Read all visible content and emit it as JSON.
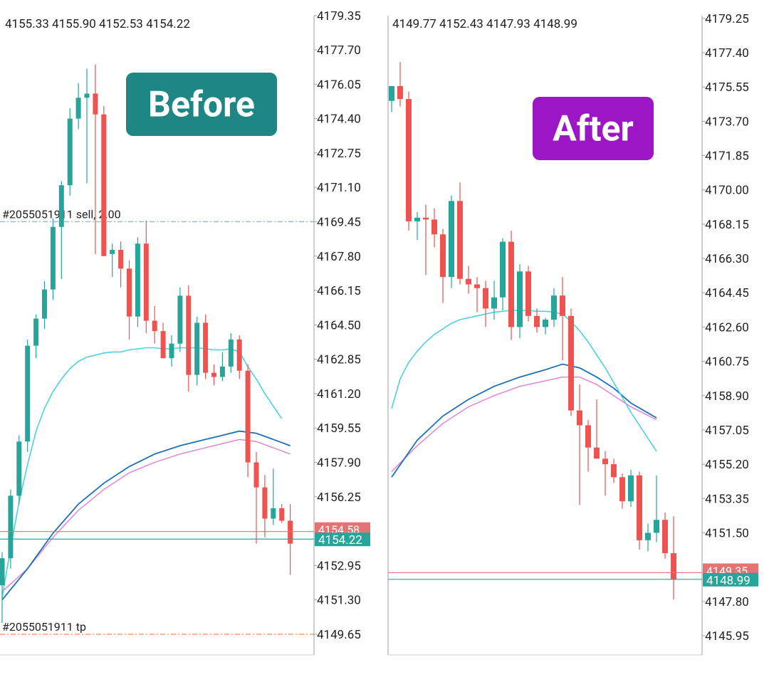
{
  "colors": {
    "bull": "#26a69a",
    "bear": "#ef5350",
    "bid": "#e57373",
    "ask": "#26a69a",
    "ma_fast": "#4dd0e1",
    "ma_mid": "#1e6fb5",
    "ma_slow": "#e08fd4",
    "sell_line": "#7ec3d9",
    "tp_line": "#f0a070",
    "before_badge": "#1e8784",
    "after_badge": "#9c16c6"
  },
  "badges": {
    "before": "Before",
    "after": "After"
  },
  "chart_data": [
    {
      "id": "before",
      "type": "candlestick",
      "ohlc_label": "4155.33 4155.90 4152.53 4154.22",
      "yaxis_ticks": [
        "4179.35",
        "4177.70",
        "4176.05",
        "4174.40",
        "4172.75",
        "4171.10",
        "4169.45",
        "4167.80",
        "4166.15",
        "4164.50",
        "4162.85",
        "4161.20",
        "4159.55",
        "4157.90",
        "4156.25",
        "4152.95",
        "4151.30",
        "4149.65"
      ],
      "yaxis_top_clipped": "4179.35",
      "bid": {
        "value": 4154.58,
        "label": "4154.58"
      },
      "ask": {
        "value": 4154.22,
        "label": "4154.22"
      },
      "order_lines": [
        {
          "label": "#2055051911 sell, 2.00",
          "value": 4169.45,
          "style": "sell"
        },
        {
          "label": "#2055051911 tp",
          "value": 4149.65,
          "style": "tp"
        }
      ],
      "candles": [
        [
          4152.0,
          4153.6,
          4150.2,
          4153.3
        ],
        [
          4153.3,
          4156.6,
          4152.8,
          4156.3
        ],
        [
          4156.3,
          4159.2,
          4155.9,
          4158.9
        ],
        [
          4158.9,
          4163.8,
          4158.4,
          4163.5
        ],
        [
          4163.5,
          4165.0,
          4162.9,
          4164.8
        ],
        [
          4164.8,
          4166.6,
          4164.3,
          4166.2
        ],
        [
          4166.2,
          4169.6,
          4165.7,
          4169.2
        ],
        [
          4169.2,
          4171.4,
          4166.7,
          4171.2
        ],
        [
          4171.2,
          4174.9,
          4170.7,
          4174.4
        ],
        [
          4174.4,
          4176.1,
          4173.9,
          4175.4
        ],
        [
          4175.4,
          4176.8,
          4171.3,
          4175.6
        ],
        [
          4175.6,
          4177.0,
          4167.9,
          4174.6
        ],
        [
          4174.6,
          4175.0,
          4167.8,
          4167.8
        ],
        [
          4167.9,
          4168.4,
          4166.8,
          4168.1
        ],
        [
          4168.1,
          4168.5,
          4166.3,
          4167.2
        ],
        [
          4167.2,
          4167.6,
          4163.8,
          4164.9
        ],
        [
          4164.9,
          4168.7,
          4164.4,
          4168.4
        ],
        [
          4168.4,
          4169.5,
          4164.1,
          4164.7
        ],
        [
          4164.7,
          4165.4,
          4163.6,
          4164.2
        ],
        [
          4164.2,
          4164.6,
          4162.9,
          4162.9
        ],
        [
          4162.9,
          4164.0,
          4162.5,
          4163.6
        ],
        [
          4163.6,
          4166.3,
          4163.2,
          4165.9
        ],
        [
          4165.9,
          4166.4,
          4161.3,
          4162.1
        ],
        [
          4162.1,
          4164.9,
          4161.6,
          4164.6
        ],
        [
          4164.6,
          4165.0,
          4161.9,
          4162.2
        ],
        [
          4162.2,
          4162.6,
          4161.6,
          4162.0
        ],
        [
          4162.0,
          4163.2,
          4161.8,
          4162.5
        ],
        [
          4162.5,
          4164.1,
          4162.2,
          4163.8
        ],
        [
          4163.8,
          4164.0,
          4161.9,
          4162.3
        ],
        [
          4162.3,
          4162.6,
          4157.2,
          4157.9
        ],
        [
          4157.9,
          4158.4,
          4154.0,
          4156.7
        ],
        [
          4156.7,
          4157.3,
          4154.3,
          4155.2
        ],
        [
          4155.2,
          4157.6,
          4154.9,
          4155.7
        ],
        [
          4155.7,
          4155.9,
          4155.0,
          4155.1
        ],
        [
          4155.1,
          4155.9,
          4152.5,
          4154.0
        ]
      ],
      "ma_fast": [
        [
          0,
          4151.4
        ],
        [
          1,
          4153.8
        ],
        [
          2,
          4156.0
        ],
        [
          3,
          4157.8
        ],
        [
          4,
          4159.4
        ],
        [
          5,
          4160.5
        ],
        [
          6,
          4161.3
        ],
        [
          7,
          4161.9
        ],
        [
          8,
          4162.4
        ],
        [
          9,
          4162.75
        ],
        [
          10,
          4162.95
        ],
        [
          11,
          4163.05
        ],
        [
          12,
          4163.15
        ],
        [
          13,
          4163.2
        ],
        [
          14,
          4163.2
        ],
        [
          15,
          4163.3
        ],
        [
          16,
          4163.35
        ],
        [
          17,
          4163.4
        ],
        [
          18,
          4163.4
        ],
        [
          19,
          4163.35
        ],
        [
          20,
          4163.35
        ],
        [
          21,
          4163.4
        ],
        [
          22,
          4163.4
        ],
        [
          23,
          4163.4
        ],
        [
          24,
          4163.35
        ],
        [
          25,
          4163.3
        ],
        [
          26,
          4163.3
        ],
        [
          27,
          4163.35
        ],
        [
          28,
          4163.2
        ],
        [
          29,
          4162.5
        ],
        [
          30,
          4161.9
        ],
        [
          31,
          4161.2
        ],
        [
          32,
          4160.6
        ],
        [
          33,
          4160.0
        ]
      ],
      "ma_mid": [
        [
          0,
          4151.3
        ],
        [
          3,
          4152.8
        ],
        [
          6,
          4154.5
        ],
        [
          9,
          4155.9
        ],
        [
          12,
          4156.9
        ],
        [
          15,
          4157.7
        ],
        [
          18,
          4158.3
        ],
        [
          21,
          4158.7
        ],
        [
          24,
          4159.0
        ],
        [
          26,
          4159.2
        ],
        [
          28,
          4159.4
        ],
        [
          30,
          4159.3
        ],
        [
          32,
          4159.0
        ],
        [
          34,
          4158.7
        ]
      ],
      "ma_slow": [
        [
          0,
          4151.7
        ],
        [
          3,
          4152.8
        ],
        [
          6,
          4154.3
        ],
        [
          9,
          4155.6
        ],
        [
          12,
          4156.6
        ],
        [
          15,
          4157.4
        ],
        [
          18,
          4157.9
        ],
        [
          21,
          4158.3
        ],
        [
          24,
          4158.6
        ],
        [
          26,
          4158.8
        ],
        [
          28,
          4159.0
        ],
        [
          30,
          4158.9
        ],
        [
          32,
          4158.6
        ],
        [
          34,
          4158.3
        ]
      ]
    },
    {
      "id": "after",
      "type": "candlestick",
      "ohlc_label": "4149.77 4152.43 4147.93 4148.99",
      "yaxis_ticks": [
        "4179.25",
        "4177.40",
        "4175.55",
        "4173.70",
        "4171.85",
        "4170.00",
        "4168.15",
        "4166.30",
        "4164.45",
        "4162.60",
        "4160.75",
        "4158.90",
        "4157.05",
        "4155.20",
        "4153.35",
        "4151.50",
        "4147.80",
        "4145.95"
      ],
      "bid": {
        "value": 4149.35,
        "label": "4149.35"
      },
      "ask": {
        "value": 4148.99,
        "label": "4148.99"
      },
      "order_lines": [],
      "candles": [
        [
          4174.8,
          4175.6,
          4174.2,
          4175.6
        ],
        [
          4175.6,
          4176.9,
          4174.5,
          4174.9
        ],
        [
          4174.9,
          4175.3,
          4167.8,
          4168.3
        ],
        [
          4168.3,
          4168.8,
          4167.3,
          4168.5
        ],
        [
          4168.5,
          4169.2,
          4165.4,
          4168.4
        ],
        [
          4168.4,
          4169.0,
          4166.9,
          4167.6
        ],
        [
          4167.6,
          4167.9,
          4163.9,
          4165.3
        ],
        [
          4165.3,
          4169.7,
          4164.7,
          4169.4
        ],
        [
          4169.4,
          4170.4,
          4164.9,
          4165.2
        ],
        [
          4165.2,
          4165.9,
          4164.4,
          4164.9
        ],
        [
          4164.9,
          4165.3,
          4163.4,
          4164.7
        ],
        [
          4164.7,
          4165.1,
          4162.6,
          4163.6
        ],
        [
          4163.6,
          4165.1,
          4163.0,
          4164.2
        ],
        [
          4164.2,
          4167.4,
          4163.5,
          4167.2
        ],
        [
          4167.2,
          4167.8,
          4161.9,
          4162.6
        ],
        [
          4162.6,
          4166.0,
          4162.0,
          4165.6
        ],
        [
          4165.6,
          4165.9,
          4162.9,
          4163.2
        ],
        [
          4163.2,
          4163.6,
          4162.3,
          4162.6
        ],
        [
          4162.6,
          4163.1,
          4162.2,
          4163.0
        ],
        [
          4163.0,
          4164.7,
          4162.6,
          4164.3
        ],
        [
          4164.3,
          4165.3,
          4160.8,
          4163.2
        ],
        [
          4163.2,
          4163.6,
          4157.8,
          4158.1
        ],
        [
          4158.1,
          4159.5,
          4153.0,
          4157.3
        ],
        [
          4157.3,
          4157.6,
          4154.8,
          4156.1
        ],
        [
          4156.1,
          4158.7,
          4155.5,
          4155.5
        ],
        [
          4155.5,
          4155.9,
          4153.5,
          4155.2
        ],
        [
          4155.2,
          4155.5,
          4154.2,
          4154.5
        ],
        [
          4154.5,
          4154.7,
          4152.8,
          4153.2
        ],
        [
          4153.2,
          4154.9,
          4152.9,
          4154.6
        ],
        [
          4154.6,
          4154.8,
          4150.6,
          4151.1
        ],
        [
          4151.1,
          4152.0,
          4150.5,
          4151.5
        ],
        [
          4151.5,
          4154.6,
          4151.0,
          4152.2
        ],
        [
          4152.2,
          4152.6,
          4150.1,
          4150.4
        ],
        [
          4150.4,
          4152.4,
          4147.9,
          4149.0
        ]
      ],
      "ma_fast": [
        [
          0,
          4158.2
        ],
        [
          1,
          4159.8
        ],
        [
          2,
          4160.7
        ],
        [
          3,
          4161.3
        ],
        [
          4,
          4161.8
        ],
        [
          5,
          4162.2
        ],
        [
          6,
          4162.5
        ],
        [
          7,
          4162.8
        ],
        [
          8,
          4163.0
        ],
        [
          9,
          4163.1
        ],
        [
          10,
          4163.2
        ],
        [
          11,
          4163.3
        ],
        [
          12,
          4163.4
        ],
        [
          13,
          4163.45
        ],
        [
          14,
          4163.5
        ],
        [
          15,
          4163.5
        ],
        [
          16,
          4163.5
        ],
        [
          17,
          4163.45
        ],
        [
          18,
          4163.45
        ],
        [
          19,
          4163.4
        ],
        [
          20,
          4163.3
        ],
        [
          21,
          4162.9
        ],
        [
          22,
          4162.4
        ],
        [
          23,
          4161.8
        ],
        [
          24,
          4161.1
        ],
        [
          25,
          4160.4
        ],
        [
          26,
          4159.6
        ],
        [
          27,
          4158.8
        ],
        [
          28,
          4158.0
        ],
        [
          29,
          4157.3
        ],
        [
          30,
          4156.6
        ],
        [
          31,
          4155.9
        ]
      ],
      "ma_mid": [
        [
          0,
          4154.5
        ],
        [
          3,
          4156.5
        ],
        [
          6,
          4157.8
        ],
        [
          9,
          4158.7
        ],
        [
          12,
          4159.4
        ],
        [
          15,
          4159.9
        ],
        [
          18,
          4160.3
        ],
        [
          20,
          4160.6
        ],
        [
          22,
          4160.4
        ],
        [
          24,
          4159.9
        ],
        [
          26,
          4159.3
        ],
        [
          28,
          4158.5
        ],
        [
          31,
          4157.7
        ]
      ],
      "ma_slow": [
        [
          0,
          4154.8
        ],
        [
          3,
          4156.2
        ],
        [
          6,
          4157.4
        ],
        [
          9,
          4158.3
        ],
        [
          12,
          4158.9
        ],
        [
          15,
          4159.4
        ],
        [
          18,
          4159.7
        ],
        [
          20,
          4159.9
        ],
        [
          22,
          4159.9
        ],
        [
          24,
          4159.5
        ],
        [
          26,
          4158.9
        ],
        [
          28,
          4158.3
        ],
        [
          31,
          4157.6
        ]
      ]
    }
  ]
}
